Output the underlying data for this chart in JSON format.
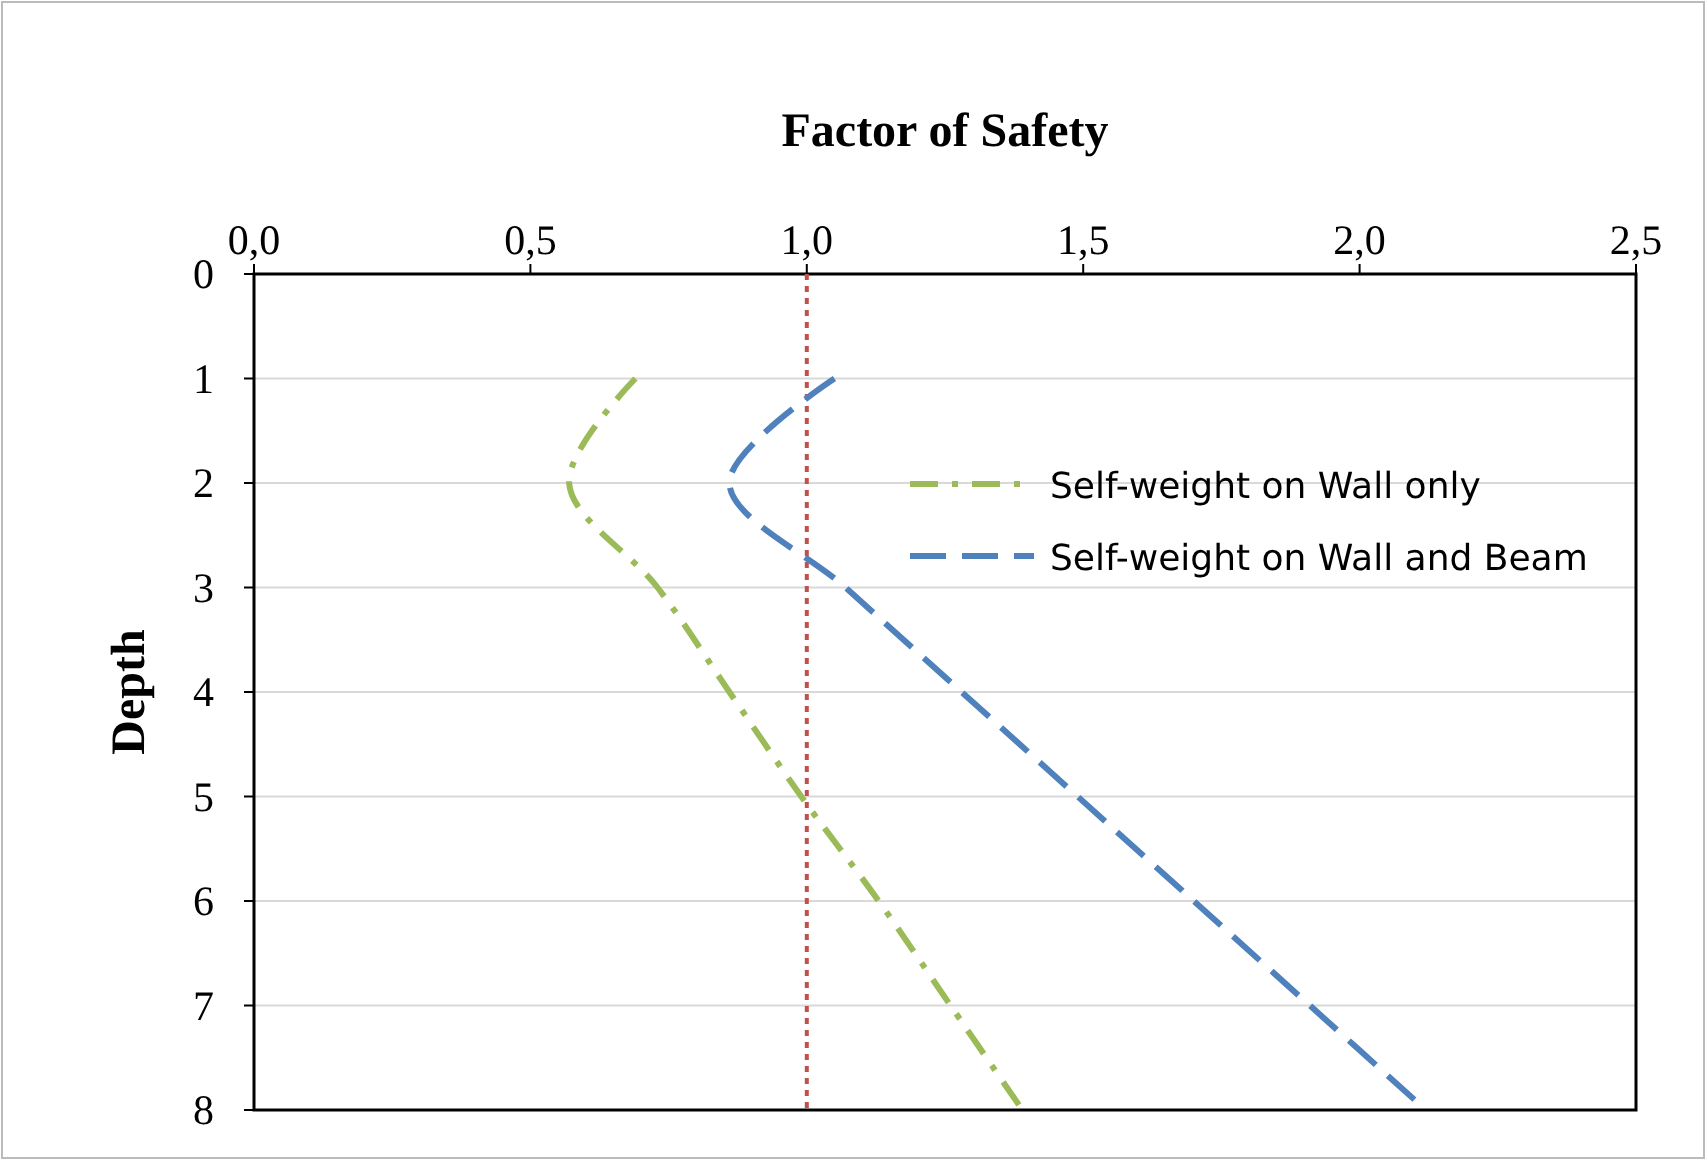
{
  "chart_data": {
    "type": "line",
    "xlabel": "Factor of Safety",
    "ylabel": "Depth",
    "xlim": [
      0,
      2.5
    ],
    "xticks": [
      {
        "value": 0,
        "label": "0,0"
      },
      {
        "value": 0.5,
        "label": "0,5"
      },
      {
        "value": 1,
        "label": "1,0"
      },
      {
        "value": 1.5,
        "label": "1,5"
      },
      {
        "value": 2,
        "label": "2,0"
      },
      {
        "value": 2.5,
        "label": "2,5"
      }
    ],
    "ylim": [
      8,
      0
    ],
    "yticks": [
      0,
      1,
      2,
      3,
      4,
      5,
      6,
      7,
      8
    ],
    "grid": "y",
    "legend": "right",
    "series": [
      {
        "name": "Self-weight on Wall only",
        "color": "#9bbb59",
        "line_style": "dashdot",
        "x": [
          0.69,
          0.57,
          0.73,
          0.86,
          0.99,
          1.13,
          1.26,
          1.39
        ],
        "values": [
          1,
          2,
          3,
          4,
          5,
          6,
          7,
          8
        ]
      },
      {
        "name": "Self-weight on Wall and Beam",
        "color": "#4f81bd",
        "line_style": "dashed",
        "x": [
          1.05,
          0.86,
          1.07,
          1.28,
          1.49,
          1.7,
          1.91,
          2.12
        ],
        "values": [
          1,
          2,
          3,
          4,
          5,
          6,
          7,
          8
        ]
      }
    ],
    "ref_lines": [
      {
        "axis": "x",
        "value": 1,
        "color": "#c0504d",
        "line_style": "dotted"
      }
    ]
  }
}
